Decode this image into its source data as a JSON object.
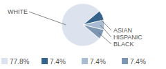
{
  "chart_data": {
    "type": "pie",
    "categories": [
      "WHITE",
      "ASIAN",
      "HISPANIC",
      "BLACK"
    ],
    "values": [
      77.8,
      7.4,
      7.4,
      7.4
    ],
    "value_labels": [
      "77.8%",
      "7.4%",
      "7.4%",
      "7.4%"
    ],
    "colors": [
      "#dce3ee",
      "#35628b",
      "#a8bbd0",
      "#7d97b3"
    ],
    "data_labels": true,
    "legend": "bottom"
  }
}
